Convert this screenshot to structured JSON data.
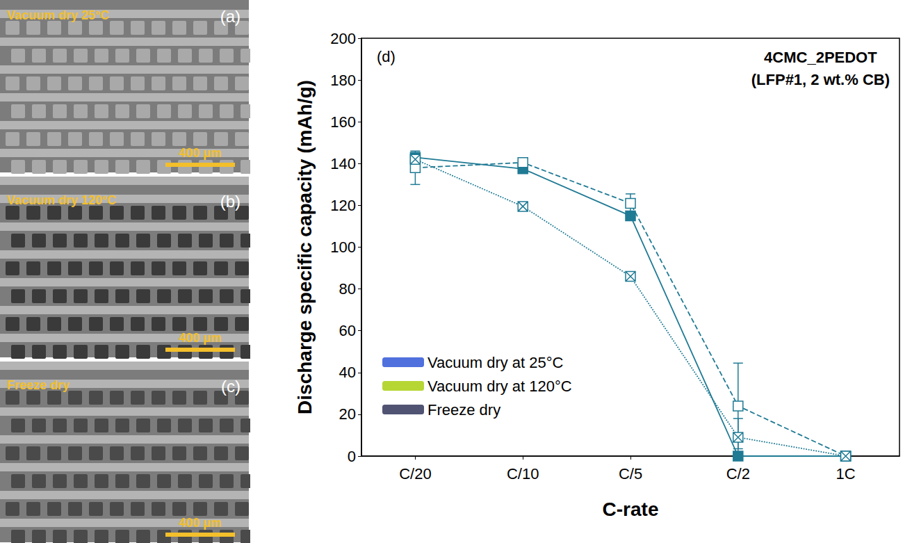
{
  "images": [
    {
      "letter": "(a)",
      "label": "Vacuum dry 25°C",
      "scale_bar": "400 µm"
    },
    {
      "letter": "(b)",
      "label": "Vacuum dry 120°C",
      "scale_bar": "400 µm"
    },
    {
      "letter": "(c)",
      "label": "Freeze dry",
      "scale_bar": "400 µm"
    }
  ],
  "chart_data": {
    "type": "line",
    "panel_letter": "(d)",
    "annotation": [
      "4CMC_2PEDOT",
      "(LFP#1, 2 wt.% CB)"
    ],
    "x_label": "C-rate",
    "y_label": "Discharge specific capacity (mAh/g)",
    "categories": [
      "C/20",
      "C/10",
      "C/5",
      "C/2",
      "1C"
    ],
    "ylim": [
      0,
      200
    ],
    "yticks": [
      0,
      20,
      40,
      60,
      80,
      100,
      120,
      140,
      160,
      180,
      200
    ],
    "grid": false,
    "legend": "lower left",
    "series": [
      {
        "name": "Vacuum dry at 25°C",
        "color": "#1f7a94",
        "marker": "square",
        "line_style": "solid",
        "values": [
          143,
          137.5,
          115,
          0,
          0
        ],
        "errors": [
          1.5,
          1.5,
          1.5,
          0,
          0
        ]
      },
      {
        "name": "Vacuum dry at 120°C",
        "color": "#1f7a94",
        "marker": "square-open",
        "line_style": "dashed",
        "values": [
          138,
          140.5,
          121,
          24,
          0
        ],
        "errors": [
          8,
          2,
          4.5,
          20.5,
          0
        ]
      },
      {
        "name": "Freeze dry",
        "color": "#1f7a94",
        "marker": "square-crossed",
        "line_style": "dotted",
        "values": [
          142,
          119.5,
          86,
          9,
          0
        ],
        "errors": [
          1,
          1.5,
          1.5,
          9,
          0
        ]
      }
    ]
  }
}
